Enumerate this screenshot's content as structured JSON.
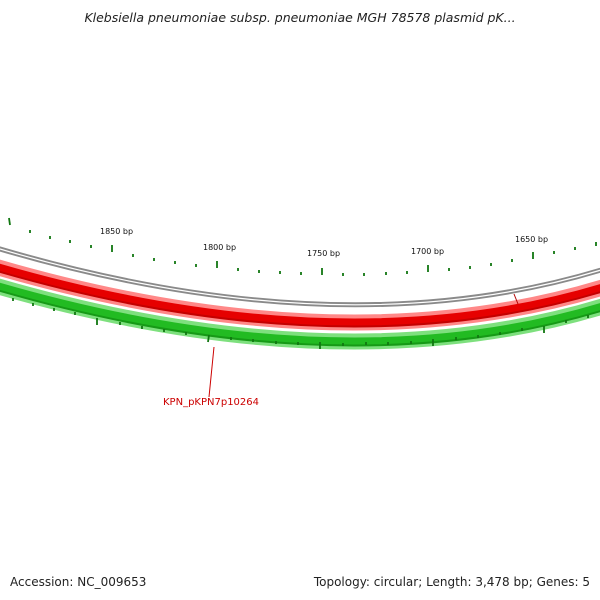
{
  "header": {
    "title": "Klebsiella pneumoniae subsp. pneumoniae MGH 78578 plasmid pK..."
  },
  "footer": {
    "accession": "Accession: NC_009653",
    "summary": "Topology: circular; Length: 3,478 bp; Genes: 5"
  },
  "map": {
    "ruler_labels": [
      "1850 bp",
      "1800 bp",
      "1750 bp",
      "1700 bp",
      "1650 bp"
    ],
    "gene_label": "KPN_pKPN7p10264",
    "colors": {
      "backbone": "#8a8a8a",
      "reverse_strand": "#e60000",
      "forward_strand": "#22bb22",
      "ticks": "#117711",
      "gene_label": "#cc0000"
    }
  }
}
